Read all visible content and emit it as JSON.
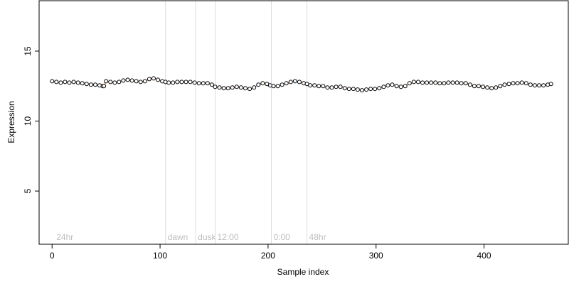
{
  "chart_data": {
    "type": "scatter",
    "title": "",
    "xlabel": "Sample index",
    "ylabel": "Expression",
    "xlim": [
      -12,
      478
    ],
    "ylim": [
      1.2,
      18.6
    ],
    "x_ticks": [
      0,
      100,
      200,
      300,
      400
    ],
    "y_ticks": [
      5,
      10,
      15
    ],
    "grid": false,
    "legend": "none",
    "colors": {
      "point_stroke": "#000000",
      "segment_orange": "#f4a460",
      "segment_blue": "#a9c4e8",
      "vline": "#dddddd",
      "vline_label": "#bdbdbd"
    },
    "vlines": [
      {
        "x": 105,
        "label": "dawn"
      },
      {
        "x": 133,
        "label": "dusk"
      },
      {
        "x": 151,
        "label": "12:00"
      },
      {
        "x": 203,
        "label": "0:00"
      },
      {
        "x": 236,
        "label": "48hr"
      }
    ],
    "corner_label": {
      "x": 2,
      "label": "24hr"
    },
    "series": [
      {
        "values": [
          [
            0,
            12.85
          ],
          [
            4,
            12.8
          ],
          [
            8,
            12.75
          ],
          [
            12,
            12.8
          ],
          [
            16,
            12.75
          ],
          [
            20,
            12.8
          ],
          [
            24,
            12.75
          ],
          [
            28,
            12.7
          ],
          [
            32,
            12.65
          ],
          [
            36,
            12.6
          ],
          [
            40,
            12.6
          ],
          [
            44,
            12.55
          ],
          [
            47,
            12.5
          ],
          [
            48,
            12.5
          ],
          [
            50,
            12.85
          ],
          [
            54,
            12.8
          ],
          [
            58,
            12.75
          ],
          [
            62,
            12.8
          ],
          [
            66,
            12.9
          ],
          [
            70,
            12.95
          ],
          [
            74,
            12.9
          ],
          [
            78,
            12.85
          ],
          [
            82,
            12.8
          ],
          [
            86,
            12.85
          ],
          [
            90,
            13.0
          ],
          [
            94,
            13.05
          ],
          [
            98,
            12.95
          ],
          [
            102,
            12.85
          ],
          [
            105,
            12.8
          ],
          [
            108,
            12.75
          ],
          [
            112,
            12.75
          ],
          [
            116,
            12.8
          ],
          [
            120,
            12.8
          ],
          [
            124,
            12.8
          ],
          [
            128,
            12.8
          ],
          [
            132,
            12.75
          ],
          [
            136,
            12.7
          ],
          [
            140,
            12.7
          ],
          [
            144,
            12.7
          ],
          [
            148,
            12.6
          ],
          [
            151,
            12.45
          ],
          [
            155,
            12.4
          ],
          [
            159,
            12.35
          ],
          [
            163,
            12.35
          ],
          [
            167,
            12.4
          ],
          [
            171,
            12.45
          ],
          [
            175,
            12.4
          ],
          [
            179,
            12.35
          ],
          [
            183,
            12.3
          ],
          [
            187,
            12.4
          ],
          [
            191,
            12.6
          ],
          [
            195,
            12.7
          ],
          [
            199,
            12.65
          ],
          [
            202,
            12.55
          ],
          [
            205,
            12.5
          ],
          [
            209,
            12.5
          ],
          [
            213,
            12.6
          ],
          [
            217,
            12.7
          ],
          [
            221,
            12.8
          ],
          [
            225,
            12.85
          ],
          [
            229,
            12.8
          ],
          [
            233,
            12.7
          ],
          [
            236,
            12.65
          ],
          [
            239,
            12.55
          ],
          [
            243,
            12.55
          ],
          [
            247,
            12.5
          ],
          [
            251,
            12.5
          ],
          [
            255,
            12.4
          ],
          [
            259,
            12.4
          ],
          [
            263,
            12.45
          ],
          [
            267,
            12.45
          ],
          [
            271,
            12.35
          ],
          [
            275,
            12.3
          ],
          [
            279,
            12.3
          ],
          [
            283,
            12.25
          ],
          [
            287,
            12.2
          ],
          [
            291,
            12.25
          ],
          [
            295,
            12.3
          ],
          [
            299,
            12.3
          ],
          [
            303,
            12.35
          ],
          [
            307,
            12.45
          ],
          [
            311,
            12.55
          ],
          [
            315,
            12.6
          ],
          [
            319,
            12.5
          ],
          [
            323,
            12.45
          ],
          [
            327,
            12.5
          ],
          [
            331,
            12.7
          ],
          [
            335,
            12.8
          ],
          [
            339,
            12.8
          ],
          [
            343,
            12.75
          ],
          [
            347,
            12.75
          ],
          [
            351,
            12.75
          ],
          [
            355,
            12.75
          ],
          [
            359,
            12.7
          ],
          [
            363,
            12.7
          ],
          [
            367,
            12.75
          ],
          [
            371,
            12.75
          ],
          [
            375,
            12.75
          ],
          [
            379,
            12.7
          ],
          [
            383,
            12.7
          ],
          [
            387,
            12.6
          ],
          [
            391,
            12.5
          ],
          [
            395,
            12.5
          ],
          [
            399,
            12.45
          ],
          [
            403,
            12.4
          ],
          [
            407,
            12.35
          ],
          [
            411,
            12.4
          ],
          [
            415,
            12.5
          ],
          [
            419,
            12.6
          ],
          [
            423,
            12.65
          ],
          [
            427,
            12.7
          ],
          [
            431,
            12.7
          ],
          [
            435,
            12.75
          ],
          [
            439,
            12.7
          ],
          [
            443,
            12.6
          ],
          [
            447,
            12.55
          ],
          [
            451,
            12.55
          ],
          [
            455,
            12.55
          ],
          [
            459,
            12.6
          ],
          [
            462,
            12.65
          ]
        ]
      }
    ]
  }
}
